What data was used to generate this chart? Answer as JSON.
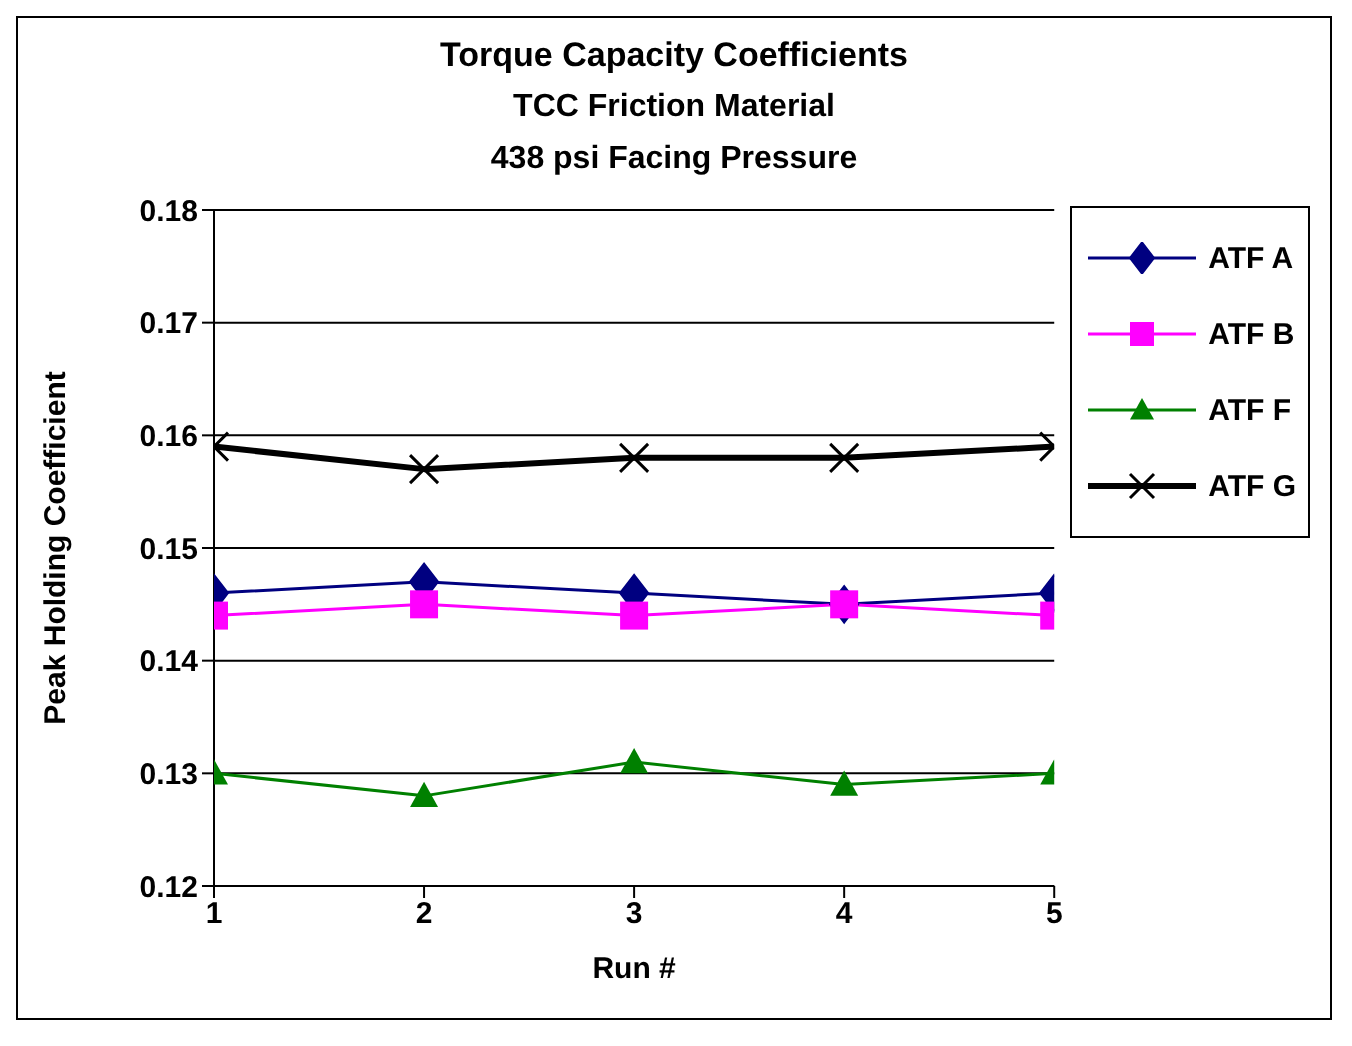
{
  "chart_data": {
    "type": "line",
    "title": "Torque Capacity Coefficients",
    "subtitle": "TCC Friction Material\n438 psi Facing Pressure",
    "xlabel": "Run #",
    "ylabel": "Peak Holding Coefficient",
    "x": [
      1,
      2,
      3,
      4,
      5
    ],
    "series": [
      {
        "name": "ATF A",
        "color": "#000080",
        "marker": "diamond",
        "values": [
          0.146,
          0.147,
          0.146,
          0.145,
          0.146
        ]
      },
      {
        "name": "ATF B",
        "color": "#ff00ff",
        "marker": "square",
        "values": [
          0.144,
          0.145,
          0.144,
          0.145,
          0.144
        ]
      },
      {
        "name": "ATF F",
        "color": "#008000",
        "marker": "triangle",
        "values": [
          0.13,
          0.128,
          0.131,
          0.129,
          0.13
        ]
      },
      {
        "name": "ATF G",
        "color": "#000000",
        "marker": "cross",
        "values": [
          0.159,
          0.157,
          0.158,
          0.158,
          0.159
        ]
      }
    ],
    "xlim": [
      1,
      5
    ],
    "xticks": [
      1,
      2,
      3,
      4,
      5
    ],
    "ylim": [
      0.12,
      0.18
    ],
    "yticks": [
      0.12,
      0.13,
      0.14,
      0.15,
      0.16,
      0.17,
      0.18
    ],
    "grid": "y",
    "legend": "right",
    "line_style": "solid"
  }
}
